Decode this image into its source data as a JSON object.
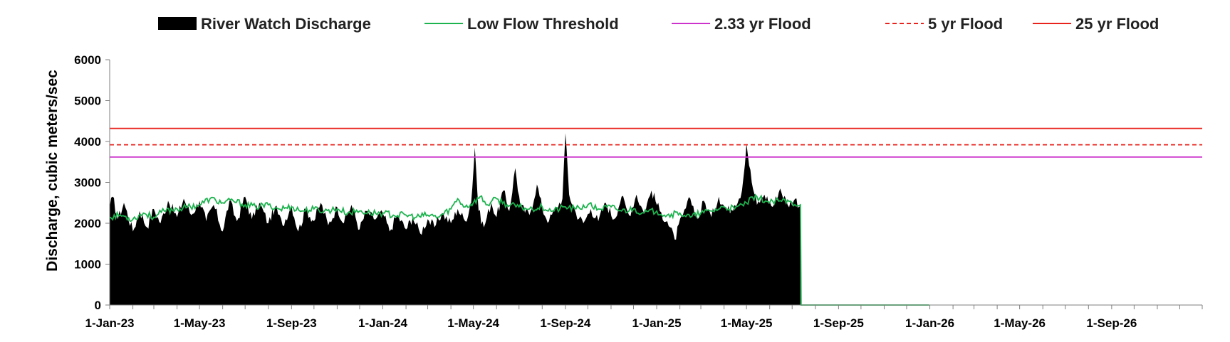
{
  "chart_data": {
    "type": "area",
    "ylabel": "Discharge, cubic meters/sec",
    "xlabel": "",
    "ylim": [
      0,
      6000
    ],
    "yticks": [
      "0",
      "1000",
      "2000",
      "3000",
      "4000",
      "5000",
      "6000"
    ],
    "xlim": [
      "2023-01-01",
      "2026-12-31"
    ],
    "xticks": [
      {
        "date": "2023-01-01",
        "label": "1-Jan-23"
      },
      {
        "date": "2023-05-01",
        "label": "1-May-23"
      },
      {
        "date": "2023-09-01",
        "label": "1-Sep-23"
      },
      {
        "date": "2024-01-01",
        "label": "1-Jan-24"
      },
      {
        "date": "2024-05-01",
        "label": "1-May-24"
      },
      {
        "date": "2024-09-01",
        "label": "1-Sep-24"
      },
      {
        "date": "2025-01-01",
        "label": "1-Jan-25"
      },
      {
        "date": "2025-05-01",
        "label": "1-May-25"
      },
      {
        "date": "2025-09-01",
        "label": "1-Sep-25"
      },
      {
        "date": "2026-01-01",
        "label": "1-Jan-26"
      },
      {
        "date": "2026-05-01",
        "label": "1-May-26"
      },
      {
        "date": "2026-09-01",
        "label": "1-Sep-26"
      }
    ],
    "legend_position": "top",
    "grid": false,
    "series": [
      {
        "name": "River Watch Discharge",
        "kind": "area",
        "color": "#000000",
        "points": [
          [
            "2023-01-01",
            2400
          ],
          [
            "2023-01-05",
            2650
          ],
          [
            "2023-01-12",
            2100
          ],
          [
            "2023-01-20",
            2500
          ],
          [
            "2023-02-01",
            1800
          ],
          [
            "2023-02-10",
            2300
          ],
          [
            "2023-02-20",
            1900
          ],
          [
            "2023-03-01",
            2350
          ],
          [
            "2023-03-10",
            2000
          ],
          [
            "2023-03-20",
            2550
          ],
          [
            "2023-04-01",
            2150
          ],
          [
            "2023-04-10",
            2600
          ],
          [
            "2023-04-20",
            2200
          ],
          [
            "2023-05-01",
            2550
          ],
          [
            "2023-05-10",
            2050
          ],
          [
            "2023-05-20",
            2450
          ],
          [
            "2023-06-01",
            1800
          ],
          [
            "2023-06-10",
            2550
          ],
          [
            "2023-06-20",
            2050
          ],
          [
            "2023-07-01",
            2650
          ],
          [
            "2023-07-10",
            2100
          ],
          [
            "2023-07-20",
            2500
          ],
          [
            "2023-08-01",
            2000
          ],
          [
            "2023-08-10",
            2400
          ],
          [
            "2023-08-20",
            1950
          ],
          [
            "2023-09-01",
            2450
          ],
          [
            "2023-09-10",
            1800
          ],
          [
            "2023-09-20",
            2350
          ],
          [
            "2023-10-01",
            2050
          ],
          [
            "2023-10-10",
            2500
          ],
          [
            "2023-10-20",
            1950
          ],
          [
            "2023-11-01",
            2400
          ],
          [
            "2023-11-10",
            2000
          ],
          [
            "2023-11-20",
            2450
          ],
          [
            "2023-12-01",
            1850
          ],
          [
            "2023-12-10",
            2300
          ],
          [
            "2023-12-20",
            2100
          ],
          [
            "2024-01-01",
            2250
          ],
          [
            "2024-01-10",
            1800
          ],
          [
            "2024-01-20",
            2200
          ],
          [
            "2024-02-01",
            1850
          ],
          [
            "2024-02-10",
            2150
          ],
          [
            "2024-02-20",
            1750
          ],
          [
            "2024-03-01",
            2100
          ],
          [
            "2024-03-10",
            1900
          ],
          [
            "2024-03-20",
            2250
          ],
          [
            "2024-04-01",
            2000
          ],
          [
            "2024-04-10",
            2350
          ],
          [
            "2024-04-20",
            2050
          ],
          [
            "2024-04-28",
            2500
          ],
          [
            "2024-05-03",
            3850
          ],
          [
            "2024-05-08",
            2300
          ],
          [
            "2024-05-15",
            1900
          ],
          [
            "2024-05-25",
            2500
          ],
          [
            "2024-06-01",
            2150
          ],
          [
            "2024-06-10",
            2800
          ],
          [
            "2024-06-18",
            2300
          ],
          [
            "2024-06-26",
            3350
          ],
          [
            "2024-07-03",
            2400
          ],
          [
            "2024-07-15",
            2200
          ],
          [
            "2024-07-25",
            2950
          ],
          [
            "2024-08-01",
            2350
          ],
          [
            "2024-08-10",
            2050
          ],
          [
            "2024-08-20",
            2400
          ],
          [
            "2024-08-28",
            2600
          ],
          [
            "2024-09-01",
            4200
          ],
          [
            "2024-09-06",
            2700
          ],
          [
            "2024-09-15",
            2250
          ],
          [
            "2024-09-25",
            2000
          ],
          [
            "2024-10-05",
            2350
          ],
          [
            "2024-10-15",
            2050
          ],
          [
            "2024-10-25",
            2500
          ],
          [
            "2024-11-05",
            2100
          ],
          [
            "2024-11-15",
            2650
          ],
          [
            "2024-11-25",
            2200
          ],
          [
            "2024-12-05",
            2700
          ],
          [
            "2024-12-15",
            2250
          ],
          [
            "2024-12-25",
            2800
          ],
          [
            "2025-01-05",
            2300
          ],
          [
            "2025-01-15",
            2050
          ],
          [
            "2025-01-25",
            1600
          ],
          [
            "2025-02-05",
            2200
          ],
          [
            "2025-02-15",
            2600
          ],
          [
            "2025-02-25",
            2100
          ],
          [
            "2025-03-05",
            2550
          ],
          [
            "2025-03-15",
            2150
          ],
          [
            "2025-03-25",
            2650
          ],
          [
            "2025-04-05",
            2300
          ],
          [
            "2025-04-15",
            2450
          ],
          [
            "2025-04-25",
            2800
          ],
          [
            "2025-05-01",
            3950
          ],
          [
            "2025-05-08",
            3000
          ],
          [
            "2025-05-15",
            2450
          ],
          [
            "2025-05-25",
            2700
          ],
          [
            "2025-06-05",
            2400
          ],
          [
            "2025-06-15",
            2850
          ],
          [
            "2025-06-25",
            2450
          ],
          [
            "2025-07-05",
            2600
          ],
          [
            "2025-07-12",
            2400
          ]
        ]
      },
      {
        "name": "Low Flow Threshold",
        "kind": "line",
        "color": "#1db34e",
        "points": [
          [
            "2023-01-01",
            2150
          ],
          [
            "2023-01-15",
            2200
          ],
          [
            "2023-02-01",
            2100
          ],
          [
            "2023-02-15",
            2250
          ],
          [
            "2023-03-01",
            2150
          ],
          [
            "2023-03-15",
            2300
          ],
          [
            "2023-04-01",
            2350
          ],
          [
            "2023-04-15",
            2400
          ],
          [
            "2023-05-01",
            2450
          ],
          [
            "2023-05-15",
            2600
          ],
          [
            "2023-06-01",
            2500
          ],
          [
            "2023-06-15",
            2550
          ],
          [
            "2023-07-01",
            2450
          ],
          [
            "2023-07-15",
            2400
          ],
          [
            "2023-08-01",
            2450
          ],
          [
            "2023-08-15",
            2350
          ],
          [
            "2023-09-01",
            2400
          ],
          [
            "2023-09-15",
            2300
          ],
          [
            "2023-10-01",
            2350
          ],
          [
            "2023-10-15",
            2300
          ],
          [
            "2023-11-01",
            2350
          ],
          [
            "2023-11-15",
            2250
          ],
          [
            "2023-12-01",
            2300
          ],
          [
            "2023-12-15",
            2250
          ],
          [
            "2024-01-01",
            2250
          ],
          [
            "2024-01-15",
            2200
          ],
          [
            "2024-02-01",
            2200
          ],
          [
            "2024-02-15",
            2150
          ],
          [
            "2024-03-01",
            2200
          ],
          [
            "2024-03-15",
            2150
          ],
          [
            "2024-04-01",
            2350
          ],
          [
            "2024-04-10",
            2600
          ],
          [
            "2024-04-20",
            2400
          ],
          [
            "2024-05-01",
            2500
          ],
          [
            "2024-05-10",
            2650
          ],
          [
            "2024-05-20",
            2450
          ],
          [
            "2024-06-01",
            2600
          ],
          [
            "2024-06-15",
            2450
          ],
          [
            "2024-07-01",
            2400
          ],
          [
            "2024-07-15",
            2350
          ],
          [
            "2024-08-01",
            2400
          ],
          [
            "2024-08-15",
            2300
          ],
          [
            "2024-09-01",
            2400
          ],
          [
            "2024-09-15",
            2350
          ],
          [
            "2024-10-01",
            2450
          ],
          [
            "2024-10-15",
            2350
          ],
          [
            "2024-11-01",
            2400
          ],
          [
            "2024-11-15",
            2300
          ],
          [
            "2024-12-01",
            2350
          ],
          [
            "2024-12-15",
            2250
          ],
          [
            "2025-01-01",
            2300
          ],
          [
            "2025-01-15",
            2200
          ],
          [
            "2025-02-01",
            2250
          ],
          [
            "2025-02-15",
            2150
          ],
          [
            "2025-03-01",
            2250
          ],
          [
            "2025-03-15",
            2300
          ],
          [
            "2025-04-01",
            2400
          ],
          [
            "2025-04-15",
            2350
          ],
          [
            "2025-05-01",
            2500
          ],
          [
            "2025-05-15",
            2650
          ],
          [
            "2025-06-01",
            2500
          ],
          [
            "2025-06-15",
            2550
          ],
          [
            "2025-07-01",
            2500
          ],
          [
            "2025-07-12",
            2450
          ],
          [
            "2025-07-13",
            0
          ],
          [
            "2025-12-31",
            0
          ]
        ]
      },
      {
        "name": "2.33 yr Flood",
        "kind": "hline",
        "value": 3620,
        "color": "#cc33cc",
        "dash": false
      },
      {
        "name": "5 yr Flood",
        "kind": "hline",
        "value": 3920,
        "color": "#e8231e",
        "dash": true
      },
      {
        "name": "25 yr Flood",
        "kind": "hline",
        "value": 4320,
        "color": "#e8231e",
        "dash": false
      }
    ]
  }
}
